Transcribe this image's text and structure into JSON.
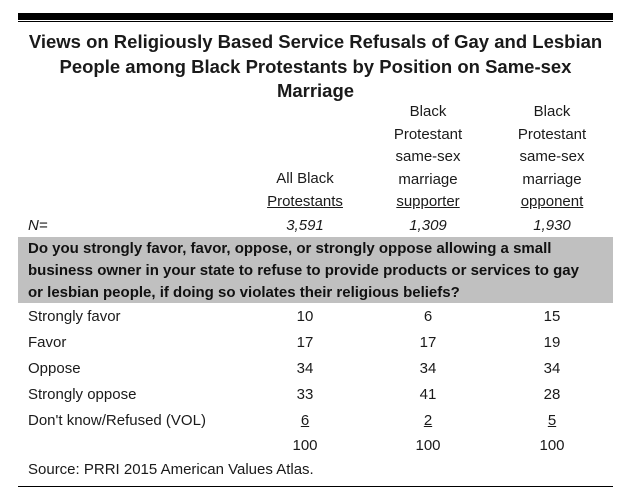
{
  "title": "Views on Religiously Based Service Refusals of Gay and Lesbian People among Black Protestants by Position on Same-sex Marriage",
  "title_lines": [
    "Views on Religiously Based Service Refusals of Gay and Lesbian",
    "People among Black Protestants by Position on Same-sex",
    "Marriage"
  ],
  "columns": [
    {
      "lines": [
        "All Black",
        "Protestants"
      ],
      "n": "3,591"
    },
    {
      "lines": [
        "Black",
        "Protestant",
        "same-sex",
        "marriage",
        "supporter"
      ],
      "n": "1,309"
    },
    {
      "lines": [
        "Black",
        "Protestant",
        "same-sex",
        "marriage",
        "opponent"
      ],
      "n": "1,930"
    }
  ],
  "n_label": "N=",
  "question": "Do you strongly favor, favor, oppose, or strongly oppose allowing a small business owner in your state to refuse to provide products or services to gay or lesbian people, if doing so violates their religious beliefs?",
  "question_lines": [
    "Do you strongly favor, favor, oppose, or strongly oppose allowing a small",
    "business owner in your state to refuse to provide products or services to gay",
    "or lesbian people, if doing so violates their religious beliefs?"
  ],
  "rows": [
    {
      "label": "Strongly favor",
      "values": [
        "10",
        "6",
        "15"
      ]
    },
    {
      "label": "Favor",
      "values": [
        "17",
        "17",
        "19"
      ]
    },
    {
      "label": "Oppose",
      "values": [
        "34",
        "34",
        "34"
      ]
    },
    {
      "label": "Strongly oppose",
      "values": [
        "33",
        "41",
        "28"
      ]
    },
    {
      "label": "Don't know/Refused (VOL)",
      "values": [
        "6",
        "2",
        "5"
      ]
    }
  ],
  "totals": [
    "100",
    "100",
    "100"
  ],
  "source": "Source: PRRI 2015 American Values Atlas.",
  "colors": {
    "question_band": "#c0c0c0",
    "rule": "#000000"
  }
}
